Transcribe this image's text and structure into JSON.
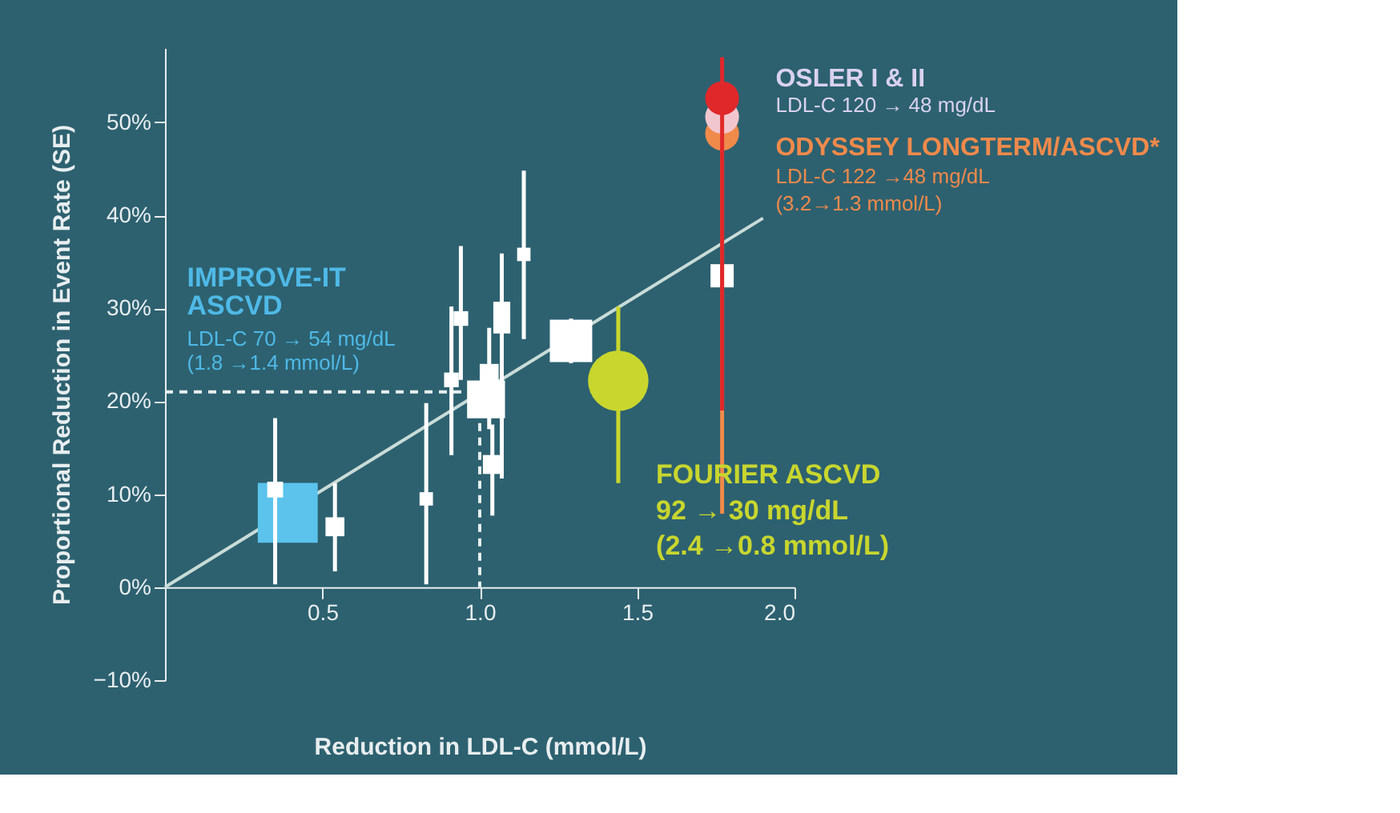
{
  "chart_data": {
    "type": "scatter",
    "xlabel": "Reduction in LDL-C (mmol/L)",
    "ylabel": "Proportional Reduction in Event Rate (SE)",
    "xlim": [
      0,
      2.0
    ],
    "ylim": [
      -10,
      58
    ],
    "xticks": [
      {
        "value": 0.5,
        "label": "0.5"
      },
      {
        "value": 1.0,
        "label": "1.0"
      },
      {
        "value": 1.5,
        "label": "1.5"
      },
      {
        "value": 2.0,
        "label": "2.0"
      }
    ],
    "yticks": [
      {
        "value": -10,
        "label": "−10%"
      },
      {
        "value": 0,
        "label": "0%"
      },
      {
        "value": 10,
        "label": "10%"
      },
      {
        "value": 20,
        "label": "20%"
      },
      {
        "value": 30,
        "label": "30%"
      },
      {
        "value": 40,
        "label": "40%"
      },
      {
        "value": 50,
        "label": "50%"
      }
    ],
    "grid": false,
    "series": [
      {
        "type": "line",
        "color": "#c9dcd8",
        "marker": "none",
        "x": [
          0,
          1.9
        ],
        "values": [
          0,
          39.7
        ]
      },
      {
        "type": "line",
        "color": "#e8f0f0",
        "line_style": "dashed",
        "marker": "none",
        "x": [
          0,
          1.0,
          1.0
        ],
        "values": [
          21,
          21,
          0
        ]
      },
      {
        "color": "#5bc3ec",
        "marker": "square",
        "x": [
          0.39
        ],
        "values": [
          8.0
        ],
        "sizes": [
          1
        ]
      },
      {
        "color": "#ffffff",
        "marker": "square",
        "x": [
          0.35,
          0.54,
          0.83,
          0.91,
          0.94,
          1.03,
          1.04,
          1.07,
          1.07,
          1.14,
          1.77
        ],
        "values": [
          10.5,
          6.5,
          9.5,
          22.3,
          28.9,
          23.0,
          13.2,
          29.8,
          28.2,
          35.8,
          33.5
        ],
        "sizes": [
          0.07,
          0.1,
          0.05,
          0.06,
          0.06,
          0.1,
          0.1,
          0.08,
          0.08,
          0.05,
          0.15
        ],
        "errors": [
          [
            0.3,
            18.2
          ],
          [
            1.7,
            11.2
          ],
          [
            0.3,
            19.8
          ],
          [
            14.2,
            30.2
          ],
          [
            22.3,
            36.7
          ],
          [
            17,
            27.9
          ],
          [
            7.7,
            17.5
          ],
          [
            11.7,
            35.9
          ],
          null,
          [
            26.7,
            44.8
          ],
          null
        ]
      },
      {
        "color": "#ffffff",
        "marker": "square",
        "x": [
          1.02,
          1.29
        ],
        "values": [
          20.2,
          26.5
        ],
        "sizes": [
          0.4,
          0.5
        ],
        "errors": [
          null,
          [
            24.1,
            28.9
          ]
        ]
      },
      {
        "color": "#c8d62e",
        "marker": "circle",
        "x": [
          1.44
        ],
        "values": [
          22.2
        ],
        "sizes": [
          0.8
        ],
        "errors": [
          [
            11.2,
            30.2
          ]
        ]
      },
      {
        "color": "#f08a4b",
        "marker": "circle",
        "x": [
          1.77
        ],
        "values": [
          48.8
        ],
        "sizes": [
          0.25
        ],
        "errors": [
          [
            7.9,
            50
          ]
        ]
      },
      {
        "color": "#f2c6cf",
        "marker": "circle",
        "x": [
          1.77
        ],
        "values": [
          50.6
        ],
        "sizes": [
          0.25
        ]
      },
      {
        "color": "#e0282a",
        "marker": "circle",
        "x": [
          1.77
        ],
        "values": [
          52.6
        ],
        "sizes": [
          0.25
        ],
        "errors": [
          [
            19,
            57
          ]
        ]
      }
    ],
    "annotations": [
      "IMPROVE-IT",
      "ASCVD",
      "LDL-C 70 → 54 mg/dL",
      "(1.8 →1.4 mmol/L)",
      "FOURIER ASCVD",
      "92 → 30 mg/dL",
      "(2.4 →0.8 mmol/L)",
      "OSLER I & II",
      "LDL-C 120 → 48 mg/dL",
      "ODYSSEY LONGTERM/ASCVD*",
      "LDL-C 122 →48 mg/dL",
      "(3.2→1.3 mmol/L)"
    ]
  }
}
